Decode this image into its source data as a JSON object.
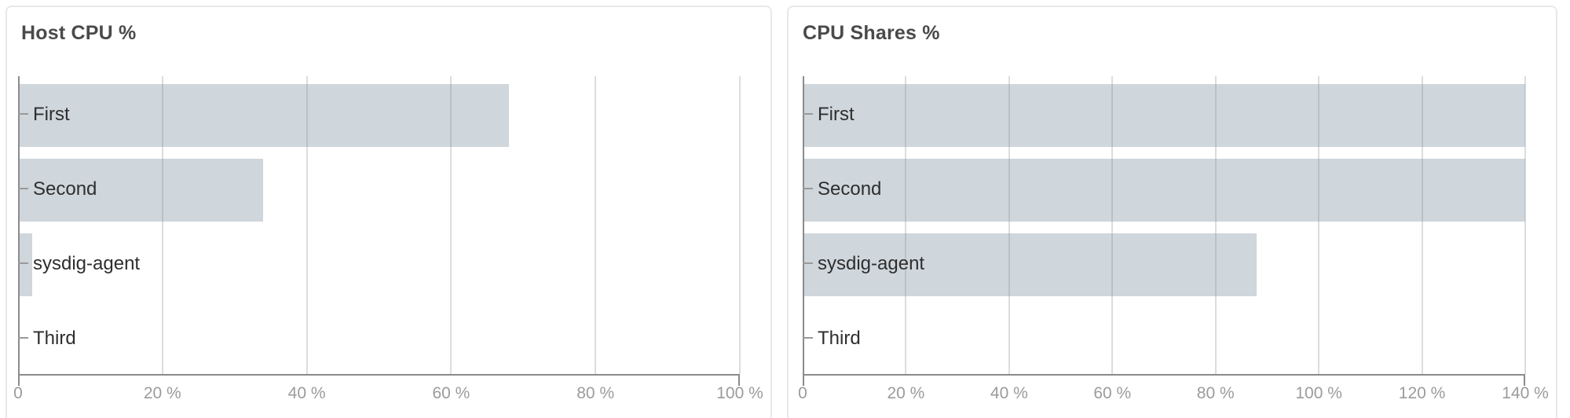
{
  "colors": {
    "bar": "#cfd6dc",
    "axis": "#8b8b8b",
    "grid": "rgba(140,148,156,0.32)",
    "tick_label": "#9b9b9b",
    "category_label": "#2e2e2e",
    "category_tick": "#9a9a9a",
    "title": "#4a4a4a",
    "card_border": "#e8e8e8",
    "card_bg": "#ffffff"
  },
  "chart_data": [
    {
      "type": "bar",
      "orientation": "horizontal",
      "title": "Host CPU %",
      "categories": [
        "First",
        "Second",
        "sysdig-agent",
        "Third"
      ],
      "values": [
        68,
        34,
        2,
        0
      ],
      "xlim": [
        0,
        100
      ],
      "ticks": [
        {
          "label": "0",
          "value": 0
        },
        {
          "label": "20 %",
          "value": 20
        },
        {
          "label": "40 %",
          "value": 40
        },
        {
          "label": "60 %",
          "value": 60
        },
        {
          "label": "80 %",
          "value": 80
        },
        {
          "label": "100 %",
          "value": 100
        }
      ],
      "grid": true,
      "legend": false
    },
    {
      "type": "bar",
      "orientation": "horizontal",
      "title": "CPU Shares %",
      "categories": [
        "First",
        "Second",
        "sysdig-agent",
        "Third"
      ],
      "values": [
        140,
        140,
        88,
        0
      ],
      "xlim": [
        0,
        140
      ],
      "ticks": [
        {
          "label": "0",
          "value": 0
        },
        {
          "label": "20 %",
          "value": 20
        },
        {
          "label": "40 %",
          "value": 40
        },
        {
          "label": "60 %",
          "value": 60
        },
        {
          "label": "80 %",
          "value": 80
        },
        {
          "label": "100 %",
          "value": 100
        },
        {
          "label": "120 %",
          "value": 120
        },
        {
          "label": "140 %",
          "value": 140
        }
      ],
      "grid": true,
      "legend": false
    }
  ]
}
